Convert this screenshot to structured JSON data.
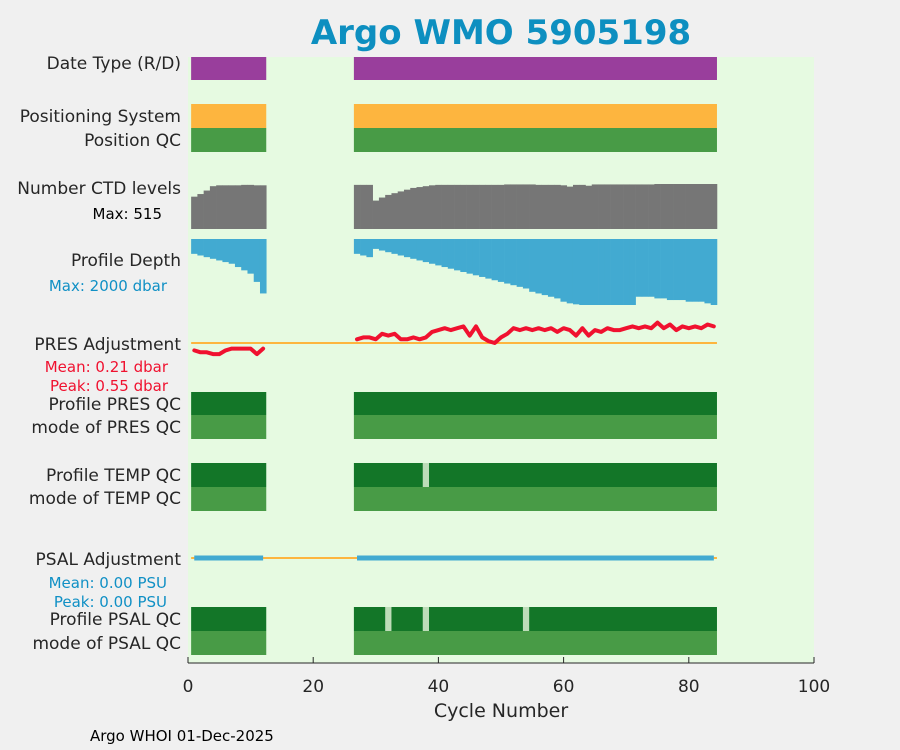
{
  "title": "Argo WMO 5905198",
  "footer": "Argo WHOI 01-Dec-2025",
  "colors": {
    "figure_bg": "#f0f0f0",
    "plot_bg": "#e6fae1",
    "title": "#0d8fc0",
    "date_type": "#993e9c",
    "positioning": "#fdb53f",
    "qc_good": "#489b46",
    "qc_profile": "#137628",
    "qc_light": "#bedcb9",
    "ctd": "#767676",
    "depth": "#42aad1",
    "pres_adj": "#f0112f",
    "zero_line": "#fdb53f",
    "psal_adj": "#42aad1"
  },
  "rows": {
    "date_type": "Date Type (R/D)",
    "positioning": "Positioning System",
    "position_qc": "Position QC",
    "ctd": "Number CTD levels",
    "ctd_max": "Max: 515",
    "depth": "Profile Depth",
    "depth_max": "Max: 2000 dbar",
    "pres_adj": "PRES Adjustment",
    "pres_mean": "Mean: 0.21 dbar",
    "pres_peak": "Peak: 0.55 dbar",
    "pres_qc": "Profile PRES QC",
    "pres_mode": "mode of PRES QC",
    "temp_qc": "Profile TEMP QC",
    "temp_mode": "mode of TEMP QC",
    "psal_adj": "PSAL Adjustment",
    "psal_mean": "Mean: 0.00 PSU",
    "psal_peak": "Peak: 0.00 PSU",
    "psal_qc": "Profile PSAL QC",
    "psal_mode": "mode of PSAL QC"
  },
  "chart_data": {
    "type": "bar",
    "xlabel": "Cycle Number",
    "xlim": [
      0,
      100
    ],
    "xticks": [
      "0",
      "20",
      "40",
      "60",
      "80",
      "100"
    ],
    "cycle_segments": [
      [
        1,
        12
      ],
      [
        27,
        84
      ]
    ],
    "ctd_max": 515,
    "depth_max": 2000,
    "ctd_levels": [
      {
        "cycle": 1,
        "value": 370
      },
      {
        "cycle": 2,
        "value": 400
      },
      {
        "cycle": 3,
        "value": 440
      },
      {
        "cycle": 4,
        "value": 490
      },
      {
        "cycle": 5,
        "value": 500
      },
      {
        "cycle": 6,
        "value": 500
      },
      {
        "cycle": 7,
        "value": 500
      },
      {
        "cycle": 8,
        "value": 500
      },
      {
        "cycle": 9,
        "value": 505
      },
      {
        "cycle": 10,
        "value": 505
      },
      {
        "cycle": 11,
        "value": 500
      },
      {
        "cycle": 12,
        "value": 500
      },
      {
        "cycle": 27,
        "value": 505
      },
      {
        "cycle": 28,
        "value": 505
      },
      {
        "cycle": 29,
        "value": 505
      },
      {
        "cycle": 30,
        "value": 325
      },
      {
        "cycle": 31,
        "value": 360
      },
      {
        "cycle": 32,
        "value": 390
      },
      {
        "cycle": 33,
        "value": 410
      },
      {
        "cycle": 34,
        "value": 430
      },
      {
        "cycle": 35,
        "value": 450
      },
      {
        "cycle": 36,
        "value": 470
      },
      {
        "cycle": 37,
        "value": 480
      },
      {
        "cycle": 38,
        "value": 490
      },
      {
        "cycle": 39,
        "value": 500
      },
      {
        "cycle": 40,
        "value": 505
      },
      {
        "cycle": 41,
        "value": 505
      },
      {
        "cycle": 42,
        "value": 505
      },
      {
        "cycle": 43,
        "value": 505
      },
      {
        "cycle": 44,
        "value": 505
      },
      {
        "cycle": 45,
        "value": 505
      },
      {
        "cycle": 46,
        "value": 505
      },
      {
        "cycle": 47,
        "value": 505
      },
      {
        "cycle": 48,
        "value": 505
      },
      {
        "cycle": 49,
        "value": 505
      },
      {
        "cycle": 50,
        "value": 505
      },
      {
        "cycle": 51,
        "value": 510
      },
      {
        "cycle": 52,
        "value": 510
      },
      {
        "cycle": 53,
        "value": 510
      },
      {
        "cycle": 54,
        "value": 510
      },
      {
        "cycle": 55,
        "value": 510
      },
      {
        "cycle": 56,
        "value": 505
      },
      {
        "cycle": 57,
        "value": 505
      },
      {
        "cycle": 58,
        "value": 505
      },
      {
        "cycle": 59,
        "value": 505
      },
      {
        "cycle": 60,
        "value": 500
      },
      {
        "cycle": 61,
        "value": 485
      },
      {
        "cycle": 62,
        "value": 505
      },
      {
        "cycle": 63,
        "value": 505
      },
      {
        "cycle": 64,
        "value": 495
      },
      {
        "cycle": 65,
        "value": 510
      },
      {
        "cycle": 66,
        "value": 510
      },
      {
        "cycle": 67,
        "value": 510
      },
      {
        "cycle": 68,
        "value": 510
      },
      {
        "cycle": 69,
        "value": 510
      },
      {
        "cycle": 70,
        "value": 510
      },
      {
        "cycle": 71,
        "value": 510
      },
      {
        "cycle": 72,
        "value": 510
      },
      {
        "cycle": 73,
        "value": 510
      },
      {
        "cycle": 74,
        "value": 510
      },
      {
        "cycle": 75,
        "value": 515
      },
      {
        "cycle": 76,
        "value": 515
      },
      {
        "cycle": 77,
        "value": 515
      },
      {
        "cycle": 78,
        "value": 515
      },
      {
        "cycle": 79,
        "value": 515
      },
      {
        "cycle": 80,
        "value": 515
      },
      {
        "cycle": 81,
        "value": 515
      },
      {
        "cycle": 82,
        "value": 515
      },
      {
        "cycle": 83,
        "value": 515
      },
      {
        "cycle": 84,
        "value": 515
      }
    ],
    "profile_depth": [
      {
        "cycle": 1,
        "value": 1550
      },
      {
        "cycle": 2,
        "value": 1500
      },
      {
        "cycle": 3,
        "value": 1450
      },
      {
        "cycle": 4,
        "value": 1400
      },
      {
        "cycle": 5,
        "value": 1350
      },
      {
        "cycle": 6,
        "value": 1300
      },
      {
        "cycle": 7,
        "value": 1250
      },
      {
        "cycle": 8,
        "value": 1150
      },
      {
        "cycle": 9,
        "value": 1050
      },
      {
        "cycle": 10,
        "value": 950
      },
      {
        "cycle": 11,
        "value": 700
      },
      {
        "cycle": 12,
        "value": 350
      },
      {
        "cycle": 27,
        "value": 1550
      },
      {
        "cycle": 28,
        "value": 1500
      },
      {
        "cycle": 29,
        "value": 1450
      },
      {
        "cycle": 30,
        "value": 1700
      },
      {
        "cycle": 31,
        "value": 1650
      },
      {
        "cycle": 32,
        "value": 1600
      },
      {
        "cycle": 33,
        "value": 1550
      },
      {
        "cycle": 34,
        "value": 1500
      },
      {
        "cycle": 35,
        "value": 1450
      },
      {
        "cycle": 36,
        "value": 1400
      },
      {
        "cycle": 37,
        "value": 1350
      },
      {
        "cycle": 38,
        "value": 1300
      },
      {
        "cycle": 39,
        "value": 1250
      },
      {
        "cycle": 40,
        "value": 1200
      },
      {
        "cycle": 41,
        "value": 1150
      },
      {
        "cycle": 42,
        "value": 1100
      },
      {
        "cycle": 43,
        "value": 1050
      },
      {
        "cycle": 44,
        "value": 1000
      },
      {
        "cycle": 45,
        "value": 950
      },
      {
        "cycle": 46,
        "value": 900
      },
      {
        "cycle": 47,
        "value": 850
      },
      {
        "cycle": 48,
        "value": 800
      },
      {
        "cycle": 49,
        "value": 750
      },
      {
        "cycle": 50,
        "value": 700
      },
      {
        "cycle": 51,
        "value": 650
      },
      {
        "cycle": 52,
        "value": 600
      },
      {
        "cycle": 53,
        "value": 550
      },
      {
        "cycle": 54,
        "value": 500
      },
      {
        "cycle": 55,
        "value": 400
      },
      {
        "cycle": 56,
        "value": 350
      },
      {
        "cycle": 57,
        "value": 300
      },
      {
        "cycle": 58,
        "value": 250
      },
      {
        "cycle": 59,
        "value": 200
      },
      {
        "cycle": 60,
        "value": 100
      },
      {
        "cycle": 61,
        "value": 50
      },
      {
        "cycle": 62,
        "value": 20
      },
      {
        "cycle": 63,
        "value": 0
      },
      {
        "cycle": 64,
        "value": 0
      },
      {
        "cycle": 65,
        "value": 0
      },
      {
        "cycle": 66,
        "value": 0
      },
      {
        "cycle": 67,
        "value": 0
      },
      {
        "cycle": 68,
        "value": 0
      },
      {
        "cycle": 69,
        "value": 0
      },
      {
        "cycle": 70,
        "value": 0
      },
      {
        "cycle": 71,
        "value": 0
      },
      {
        "cycle": 72,
        "value": 250
      },
      {
        "cycle": 73,
        "value": 250
      },
      {
        "cycle": 74,
        "value": 250
      },
      {
        "cycle": 75,
        "value": 200
      },
      {
        "cycle": 76,
        "value": 200
      },
      {
        "cycle": 77,
        "value": 150
      },
      {
        "cycle": 78,
        "value": 150
      },
      {
        "cycle": 79,
        "value": 150
      },
      {
        "cycle": 80,
        "value": 100
      },
      {
        "cycle": 81,
        "value": 100
      },
      {
        "cycle": 82,
        "value": 100
      },
      {
        "cycle": 83,
        "value": 50
      },
      {
        "cycle": 84,
        "value": 0
      }
    ],
    "pres_adjustment": [
      {
        "cycle": 1,
        "value": -0.2
      },
      {
        "cycle": 2,
        "value": -0.25
      },
      {
        "cycle": 3,
        "value": -0.25
      },
      {
        "cycle": 4,
        "value": -0.3
      },
      {
        "cycle": 5,
        "value": -0.3
      },
      {
        "cycle": 6,
        "value": -0.2
      },
      {
        "cycle": 7,
        "value": -0.15
      },
      {
        "cycle": 8,
        "value": -0.15
      },
      {
        "cycle": 9,
        "value": -0.15
      },
      {
        "cycle": 10,
        "value": -0.15
      },
      {
        "cycle": 11,
        "value": -0.3
      },
      {
        "cycle": 12,
        "value": -0.15
      },
      {
        "cycle": 27,
        "value": 0.1
      },
      {
        "cycle": 28,
        "value": 0.15
      },
      {
        "cycle": 29,
        "value": 0.15
      },
      {
        "cycle": 30,
        "value": 0.1
      },
      {
        "cycle": 31,
        "value": 0.25
      },
      {
        "cycle": 32,
        "value": 0.2
      },
      {
        "cycle": 33,
        "value": 0.25
      },
      {
        "cycle": 34,
        "value": 0.1
      },
      {
        "cycle": 35,
        "value": 0.1
      },
      {
        "cycle": 36,
        "value": 0.15
      },
      {
        "cycle": 37,
        "value": 0.1
      },
      {
        "cycle": 38,
        "value": 0.15
      },
      {
        "cycle": 39,
        "value": 0.3
      },
      {
        "cycle": 40,
        "value": 0.35
      },
      {
        "cycle": 41,
        "value": 0.4
      },
      {
        "cycle": 42,
        "value": 0.35
      },
      {
        "cycle": 43,
        "value": 0.4
      },
      {
        "cycle": 44,
        "value": 0.45
      },
      {
        "cycle": 45,
        "value": 0.2
      },
      {
        "cycle": 46,
        "value": 0.45
      },
      {
        "cycle": 47,
        "value": 0.15
      },
      {
        "cycle": 48,
        "value": 0.05
      },
      {
        "cycle": 49,
        "value": 0.0
      },
      {
        "cycle": 50,
        "value": 0.15
      },
      {
        "cycle": 51,
        "value": 0.25
      },
      {
        "cycle": 52,
        "value": 0.4
      },
      {
        "cycle": 53,
        "value": 0.35
      },
      {
        "cycle": 54,
        "value": 0.4
      },
      {
        "cycle": 55,
        "value": 0.35
      },
      {
        "cycle": 56,
        "value": 0.4
      },
      {
        "cycle": 57,
        "value": 0.35
      },
      {
        "cycle": 58,
        "value": 0.4
      },
      {
        "cycle": 59,
        "value": 0.3
      },
      {
        "cycle": 60,
        "value": 0.4
      },
      {
        "cycle": 61,
        "value": 0.35
      },
      {
        "cycle": 62,
        "value": 0.2
      },
      {
        "cycle": 63,
        "value": 0.4
      },
      {
        "cycle": 64,
        "value": 0.2
      },
      {
        "cycle": 65,
        "value": 0.35
      },
      {
        "cycle": 66,
        "value": 0.3
      },
      {
        "cycle": 67,
        "value": 0.4
      },
      {
        "cycle": 68,
        "value": 0.35
      },
      {
        "cycle": 69,
        "value": 0.35
      },
      {
        "cycle": 70,
        "value": 0.4
      },
      {
        "cycle": 71,
        "value": 0.45
      },
      {
        "cycle": 72,
        "value": 0.4
      },
      {
        "cycle": 73,
        "value": 0.45
      },
      {
        "cycle": 74,
        "value": 0.4
      },
      {
        "cycle": 75,
        "value": 0.55
      },
      {
        "cycle": 76,
        "value": 0.4
      },
      {
        "cycle": 77,
        "value": 0.5
      },
      {
        "cycle": 78,
        "value": 0.35
      },
      {
        "cycle": 79,
        "value": 0.45
      },
      {
        "cycle": 80,
        "value": 0.4
      },
      {
        "cycle": 81,
        "value": 0.45
      },
      {
        "cycle": 82,
        "value": 0.4
      },
      {
        "cycle": 83,
        "value": 0.5
      },
      {
        "cycle": 84,
        "value": 0.45
      }
    ],
    "temp_qc_flags": [
      38
    ],
    "psal_qc_flags": [
      32,
      38,
      54
    ]
  }
}
